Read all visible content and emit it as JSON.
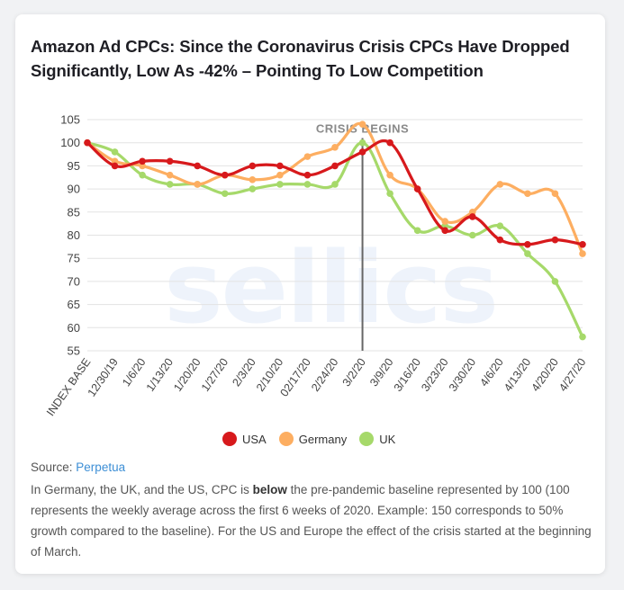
{
  "card": {
    "title": "Amazon Ad CPCs: Since the Coronavirus Crisis CPCs Have Dropped Significantly, Low As -42% – Pointing To Low Competition",
    "watermark": "sellics",
    "source_label": "Source:",
    "source_link": "Perpetua",
    "note_part1": "In Germany, the UK, and the US, CPC is ",
    "note_bold": "below",
    "note_part2": " the pre-pandemic baseline represented by 100 (100 represents the weekly average across the first 6 weeks of 2020. Example: 150 corresponds to 50% growth compared to the baseline). For the US and Europe the effect of the crisis started at the beginning of March."
  },
  "chart_data": {
    "type": "line",
    "title": "Amazon Ad CPCs: Since the Coronavirus Crisis CPCs Have Dropped Significantly, Low As -42% – Pointing To Low Competition",
    "xlabel": "",
    "ylabel": "",
    "ylim": [
      55,
      105
    ],
    "yticks": [
      105,
      100,
      95,
      90,
      85,
      80,
      75,
      70,
      65,
      60,
      55
    ],
    "grid": true,
    "legend_position": "bottom",
    "categories": [
      "INDEX BASE",
      "12/30/19",
      "1/6/20",
      "1/13/20",
      "1/20/20",
      "1/27/20",
      "2/3/20",
      "2/10/20",
      "02/17/20",
      "2/24/20",
      "3/2/20",
      "3/9/20",
      "3/16/20",
      "3/23/20",
      "3/30/20",
      "4/6/20",
      "4/13/20",
      "4/20/20",
      "4/27/20"
    ],
    "annotation": {
      "label": "CRISIS BEGINS",
      "at": "3/2/20"
    },
    "series": [
      {
        "name": "USA",
        "color": "#d7191c",
        "values": [
          100,
          95,
          96,
          96,
          95,
          93,
          95,
          95,
          93,
          95,
          98,
          100,
          90,
          81,
          84,
          79,
          78,
          79,
          78
        ]
      },
      {
        "name": "Germany",
        "color": "#fdae61",
        "values": [
          100,
          96,
          95,
          93,
          91,
          93,
          92,
          93,
          97,
          99,
          104,
          93,
          90,
          83,
          85,
          91,
          89,
          89,
          76
        ]
      },
      {
        "name": "UK",
        "color": "#a6d96a",
        "values": [
          100,
          98,
          93,
          91,
          91,
          89,
          90,
          91,
          91,
          91,
          100,
          89,
          81,
          82,
          80,
          82,
          76,
          70,
          58
        ]
      }
    ]
  }
}
